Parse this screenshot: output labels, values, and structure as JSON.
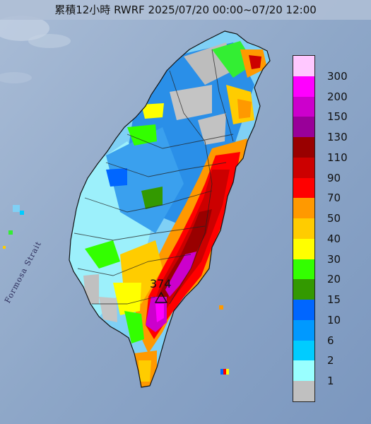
{
  "title": "累積12小時 RWRF 2025/07/20 00:00~07/20 12:00",
  "strait_label": "Formosa Strait",
  "max_station": {
    "value": "374"
  },
  "edge_mark": "",
  "legend": [
    {
      "label": "300",
      "color": "#ffc8ff"
    },
    {
      "label": "200",
      "color": "#ff00ff"
    },
    {
      "label": "150",
      "color": "#cc00cc"
    },
    {
      "label": "130",
      "color": "#990099"
    },
    {
      "label": "110",
      "color": "#990000"
    },
    {
      "label": "90",
      "color": "#cc0000"
    },
    {
      "label": "70",
      "color": "#ff0000"
    },
    {
      "label": "50",
      "color": "#ff9900"
    },
    {
      "label": "40",
      "color": "#ffcc00"
    },
    {
      "label": "30",
      "color": "#ffff00"
    },
    {
      "label": "20",
      "color": "#33ff00"
    },
    {
      "label": "15",
      "color": "#339900"
    },
    {
      "label": "10",
      "color": "#0066ff"
    },
    {
      "label": "6",
      "color": "#0099ff"
    },
    {
      "label": "2",
      "color": "#00ccff"
    },
    {
      "label": "1",
      "color": "#99ffff"
    },
    {
      "label": "",
      "color": "#c0c0c0"
    }
  ]
}
